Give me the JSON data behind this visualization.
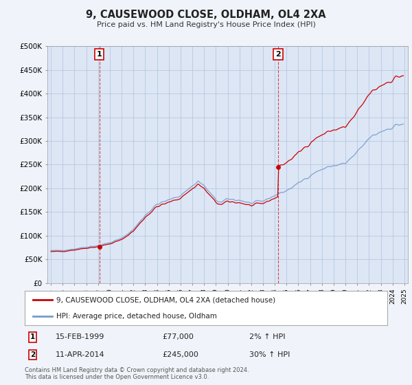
{
  "title": "9, CAUSEWOOD CLOSE, OLDHAM, OL4 2XA",
  "subtitle": "Price paid vs. HM Land Registry's House Price Index (HPI)",
  "background_color": "#f0f4fa",
  "plot_bg_color": "#dce6f5",
  "grid_color": "#b8c8e0",
  "ylim": [
    0,
    500000
  ],
  "yticks": [
    0,
    50000,
    100000,
    150000,
    200000,
    250000,
    300000,
    350000,
    400000,
    450000,
    500000
  ],
  "ytick_labels": [
    "£0",
    "£50K",
    "£100K",
    "£150K",
    "£200K",
    "£250K",
    "£300K",
    "£350K",
    "£400K",
    "£450K",
    "£500K"
  ],
  "xlim_start": 1994.7,
  "xlim_end": 2025.3,
  "xtick_years": [
    1995,
    1996,
    1997,
    1998,
    1999,
    2000,
    2001,
    2002,
    2003,
    2004,
    2005,
    2006,
    2007,
    2008,
    2009,
    2010,
    2011,
    2012,
    2013,
    2014,
    2015,
    2016,
    2017,
    2018,
    2019,
    2020,
    2021,
    2022,
    2023,
    2024,
    2025
  ],
  "sale1_x": 1999.12,
  "sale1_y": 77000,
  "sale1_label": "1",
  "sale1_date": "15-FEB-1999",
  "sale1_price": "£77,000",
  "sale1_hpi": "2% ↑ HPI",
  "sale2_x": 2014.28,
  "sale2_y": 245000,
  "sale2_label": "2",
  "sale2_date": "11-APR-2014",
  "sale2_price": "£245,000",
  "sale2_hpi": "30% ↑ HPI",
  "line_color_red": "#cc0000",
  "line_color_blue": "#7799cc",
  "legend_label_red": "9, CAUSEWOOD CLOSE, OLDHAM, OL4 2XA (detached house)",
  "legend_label_blue": "HPI: Average price, detached house, Oldham",
  "footer": "Contains HM Land Registry data © Crown copyright and database right 2024.\nThis data is licensed under the Open Government Licence v3.0."
}
